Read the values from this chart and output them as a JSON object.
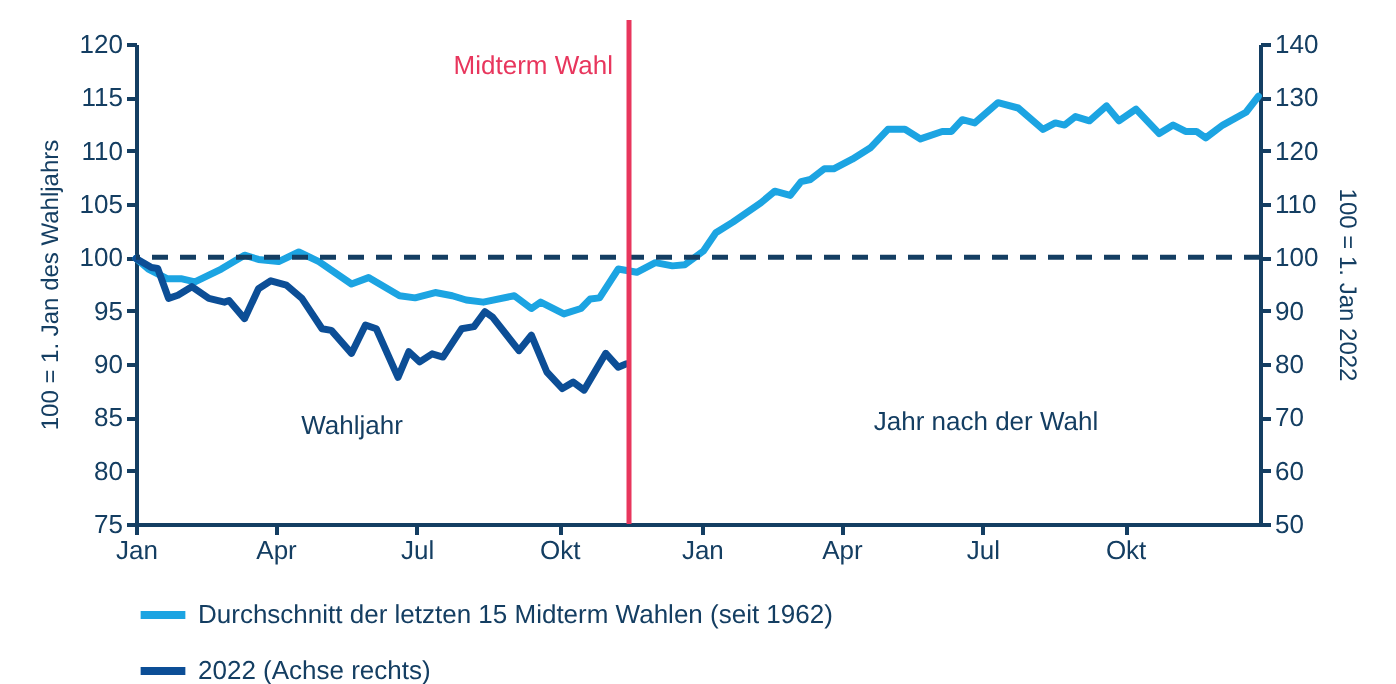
{
  "chart_data": {
    "type": "line",
    "ylabel": "100 = 1. Jan des Wahljahrs",
    "y2label": "100 = 1. Jan 2022",
    "xlim": [
      "2022-01-01",
      "2023-12-27"
    ],
    "xticks": [
      {
        "value": "2022-01-01",
        "label": "Jan"
      },
      {
        "value": "2022-04-01",
        "label": "Apr"
      },
      {
        "value": "2022-07-01",
        "label": "Jul"
      },
      {
        "value": "2022-10-01",
        "label": "Okt"
      },
      {
        "value": "2023-01-01",
        "label": "Jan"
      },
      {
        "value": "2023-04-01",
        "label": "Apr"
      },
      {
        "value": "2023-07-01",
        "label": "Jul"
      },
      {
        "value": "2023-10-01",
        "label": "Okt"
      }
    ],
    "ylim": [
      75,
      120
    ],
    "yticks": [
      75,
      80,
      85,
      90,
      95,
      100,
      105,
      110,
      115,
      120
    ],
    "y2lim": [
      50,
      140
    ],
    "y2ticks": [
      50,
      60,
      70,
      80,
      90,
      100,
      110,
      120,
      130,
      140
    ],
    "grid": false,
    "legend": "bottom",
    "marker": "none",
    "line_style": "solid",
    "series": [
      {
        "name": "Durchschnitt der letzten 15 Midterm Wahlen (seit 1962)",
        "color": "#1ca4e2",
        "x": [
          "2022-01-01",
          "2022-01-09",
          "2022-01-21",
          "2022-01-30",
          "2022-02-08",
          "2022-02-25",
          "2022-03-12",
          "2022-03-21",
          "2022-04-03",
          "2022-04-16",
          "2022-04-29",
          "2022-05-20",
          "2022-05-31",
          "2022-06-20",
          "2022-06-30",
          "2022-07-13",
          "2022-07-24",
          "2022-08-02",
          "2022-08-13",
          "2022-09-02",
          "2022-09-13",
          "2022-09-19",
          "2022-10-04",
          "2022-10-15",
          "2022-10-21",
          "2022-10-27",
          "2022-11-08",
          "2022-11-20",
          "2022-12-02",
          "2022-12-13",
          "2022-12-21",
          "2023-01-02",
          "2023-01-10",
          "2023-01-21",
          "2023-02-08",
          "2023-02-17",
          "2023-02-27",
          "2023-03-06",
          "2023-03-12",
          "2023-03-21",
          "2023-03-27",
          "2023-04-08",
          "2023-04-20",
          "2023-05-01",
          "2023-05-12",
          "2023-05-22",
          "2023-06-05",
          "2023-06-11",
          "2023-06-18",
          "2023-06-26",
          "2023-07-11",
          "2023-07-24",
          "2023-08-09",
          "2023-08-17",
          "2023-08-23",
          "2023-08-30",
          "2023-09-08",
          "2023-09-19",
          "2023-09-27",
          "2023-10-08",
          "2023-10-23",
          "2023-11-01",
          "2023-11-09",
          "2023-11-16",
          "2023-11-22",
          "2023-12-03",
          "2023-12-18",
          "2023-12-26"
        ],
        "values": [
          99.9,
          98.9,
          98.0,
          98.0,
          97.7,
          98.9,
          100.2,
          99.8,
          99.6,
          100.5,
          99.6,
          97.5,
          98.1,
          96.4,
          96.2,
          96.7,
          96.4,
          96.0,
          95.8,
          96.4,
          95.2,
          95.8,
          94.7,
          95.2,
          96.1,
          96.2,
          98.9,
          98.6,
          99.5,
          99.2,
          99.3,
          100.6,
          102.3,
          103.3,
          105.1,
          106.2,
          105.8,
          107.1,
          107.3,
          108.3,
          108.3,
          109.2,
          110.3,
          112.0,
          112.0,
          111.1,
          111.8,
          111.8,
          112.9,
          112.6,
          114.5,
          114.0,
          112.0,
          112.6,
          112.4,
          113.2,
          112.8,
          114.2,
          112.8,
          113.9,
          111.6,
          112.4,
          111.8,
          111.8,
          111.2,
          112.4,
          113.6,
          115.1
        ]
      },
      {
        "name": "2022 (Achse rechts)",
        "color": "#0c4e96",
        "axis": "y2",
        "x": [
          "2022-01-01",
          "2022-01-11",
          "2022-01-15",
          "2022-01-22",
          "2022-01-28",
          "2022-02-06",
          "2022-02-17",
          "2022-02-27",
          "2022-03-02",
          "2022-03-12",
          "2022-03-21",
          "2022-03-29",
          "2022-04-08",
          "2022-04-18",
          "2022-05-01",
          "2022-05-07",
          "2022-05-20",
          "2022-05-29",
          "2022-06-05",
          "2022-06-19",
          "2022-06-26",
          "2022-07-03",
          "2022-07-11",
          "2022-07-18",
          "2022-07-30",
          "2022-08-07",
          "2022-08-14",
          "2022-08-19",
          "2022-09-05",
          "2022-09-13",
          "2022-09-23",
          "2022-10-03",
          "2022-10-10",
          "2022-10-17",
          "2022-10-31",
          "2022-11-08",
          "2022-11-13"
        ],
        "values": [
          99.8,
          98.1,
          97.9,
          92.3,
          92.9,
          94.5,
          92.3,
          91.6,
          91.9,
          88.5,
          94.1,
          95.6,
          94.8,
          92.3,
          86.6,
          86.3,
          82.0,
          87.3,
          86.6,
          77.5,
          82.3,
          80.4,
          81.9,
          81.3,
          86.6,
          87.0,
          89.8,
          88.8,
          82.5,
          85.4,
          78.5,
          75.4,
          76.6,
          75.1,
          82.0,
          79.4,
          80.0
        ]
      }
    ],
    "ref_lines": [
      {
        "axis": "y",
        "value": 100,
        "color": "#143e62",
        "line_style": "dashed"
      },
      {
        "axis": "x",
        "value": "2022-11-15",
        "label": "Midterm Wahl",
        "color": "#e8365d"
      }
    ],
    "annotations": [
      "Wahljahr",
      "Jahr nach der Wahl"
    ]
  }
}
